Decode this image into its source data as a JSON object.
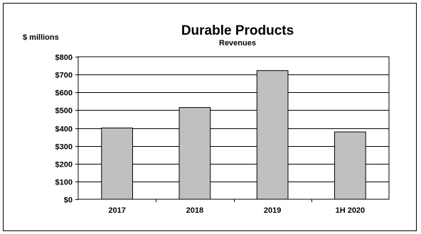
{
  "chart_data": {
    "type": "bar",
    "title": "Durable Products",
    "subtitle": "Revenues",
    "ylabel": "$ millions",
    "xlabel": "",
    "categories": [
      "2017",
      "2018",
      "2019",
      "1H 2020"
    ],
    "values": [
      400,
      515,
      722,
      378
    ],
    "ylim": [
      0,
      800
    ],
    "yticks": [
      0,
      100,
      200,
      300,
      400,
      500,
      600,
      700,
      800
    ],
    "ytick_labels": [
      "$0",
      "$100",
      "$200",
      "$300",
      "$400",
      "$500",
      "$600",
      "$700",
      "$800"
    ],
    "grid": true,
    "legend": "none",
    "bar_color": "#c0c0c0",
    "bar_edge_color": "#000000"
  }
}
